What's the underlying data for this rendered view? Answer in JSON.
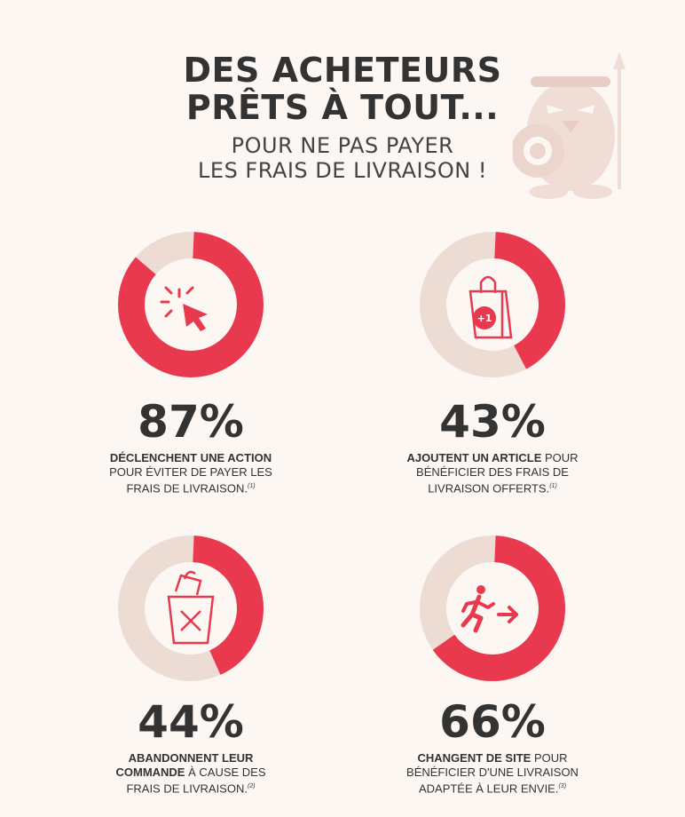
{
  "header": {
    "title_line1": "DES ACHETEURS",
    "title_line2": "PRÊTS À TOUT...",
    "subtitle_line1": "POUR NE PAS PAYER",
    "subtitle_line2": "LES FRAIS DE LIVRAISON !"
  },
  "colors": {
    "accent": "#e8394f",
    "track": "#ecdcd3",
    "background": "#fdf7f3",
    "mascot": "#f0ddd6"
  },
  "stats": [
    {
      "percent": 87,
      "label": "87%",
      "bold": "DÉCLENCHENT UNE ACTION",
      "line1_rest": "",
      "line2": "POUR ÉVITER DE PAYER LES",
      "line3": "FRAIS DE LIVRAISON.",
      "note": "(1)",
      "icon": "click-cursor-icon"
    },
    {
      "percent": 43,
      "label": "43%",
      "bold": "AJOUTENT UN ARTICLE",
      "line1_rest": " POUR",
      "line2": "BÉNÉFICIER DES FRAIS DE",
      "line3": "LIVRAISON OFFERTS.",
      "note": "(1)",
      "icon": "shopping-bag-plus-icon",
      "icon_text": "+1"
    },
    {
      "percent": 44,
      "label": "44%",
      "bold": "ABANDONNENT LEUR",
      "line1_rest": "",
      "line2_bold": "COMMANDE",
      "line2": " À CAUSE DES",
      "line3": "FRAIS DE LIVRAISON.",
      "note": "(2)",
      "icon": "trash-bag-icon"
    },
    {
      "percent": 66,
      "label": "66%",
      "bold": "CHANGENT DE SITE",
      "line1_rest": " POUR",
      "line2": "BÉNÉFICIER D'UNE LIVRAISON",
      "line3": "ADAPTÉE À LEUR ENVIE.",
      "note": "(3)",
      "icon": "running-exit-icon"
    }
  ]
}
